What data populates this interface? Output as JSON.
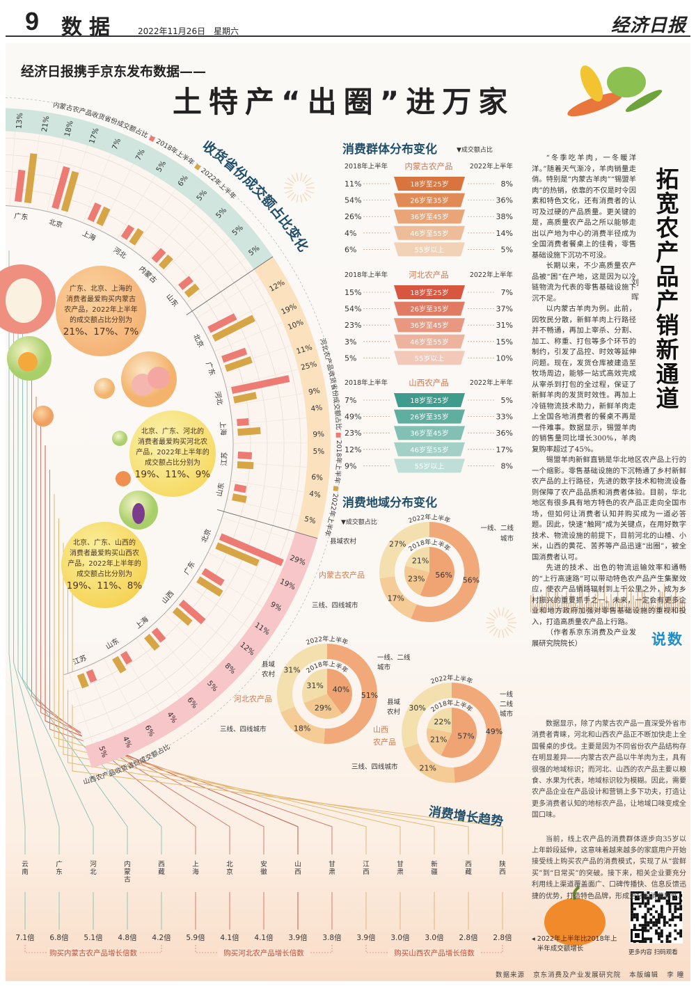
{
  "header": {
    "page_no": "9",
    "section": "数据",
    "date": "2022年11月26日",
    "weekday": "星期六",
    "masthead": "经济日报"
  },
  "headline": {
    "kicker": "经济日报携手京东发布数据——",
    "title": "土特产“出圈”进万家"
  },
  "colors": {
    "accent_title": "#1f4f6b",
    "series_2018": "#ec7b73",
    "series_2022": "#d6a545",
    "band_inner_mongolia": "#cfe5dd",
    "band_hebei": "#fbe1bd",
    "band_shanxi": "#f6c6c8",
    "shuoshu": "#1d8ec7"
  },
  "callouts": [
    {
      "lines": [
        "广东、北京、上海的",
        "消费者最爱购买内蒙古",
        "农产品，2022年上半年",
        "的成交额占比分别为"
      ],
      "values": "21%、17%、7%"
    },
    {
      "lines": [
        "北京、广东、河北的",
        "消费者最爱购买河北农",
        "产品，2022年上半年的",
        "成交额占比分别为"
      ],
      "values": "19%、11%、9%"
    },
    {
      "lines": [
        "北京、广东、山西的",
        "消费者最爱购买山西农",
        "产品，2022年上半年的",
        "成交额占比分别为"
      ],
      "values": "19%、11%、8%"
    }
  ],
  "chart_data": [
    {
      "type": "bar",
      "layout": "radial",
      "title": "收货省份成交额占比变化",
      "unit": "%",
      "legend": [
        "2018年上半年",
        "2022年上半年"
      ],
      "groups": [
        {
          "name": "内蒙古农产品收货省份成交额占比",
          "categories": [
            "广东",
            "北京",
            "上海",
            "河北",
            "内蒙古",
            "山东"
          ],
          "series": [
            {
              "name": "2018年上半年",
              "values": [
                13,
                18,
                7,
                5,
                5,
                5
              ]
            },
            {
              "name": "2022年上半年",
              "values": [
                21,
                17,
                7,
                6,
                5,
                5
              ]
            }
          ]
        },
        {
          "name": "河北农产品收货省份成交额占比",
          "categories": [
            "北京",
            "广东",
            "河北",
            "上海",
            "江苏",
            "山东"
          ],
          "series": [
            {
              "name": "2018年上半年",
              "values": [
                12,
                10,
                25,
                4,
                5,
                4
              ]
            },
            {
              "name": "2022年上半年",
              "values": [
                19,
                11,
                9,
                9,
                6,
                5
              ]
            }
          ]
        },
        {
          "name": "山西农产品收货省份成交额占比",
          "categories": [
            "北京",
            "广东",
            "山西",
            "上海",
            "山东",
            "江苏"
          ],
          "series": [
            {
              "name": "2018年上半年",
              "values": [
                29,
                9,
                12,
                5,
                4,
                4
              ]
            },
            {
              "name": "2022年上半年",
              "values": [
                19,
                11,
                8,
                6,
                6,
                5
              ]
            }
          ]
        }
      ]
    },
    {
      "type": "table",
      "layout": "funnel",
      "title": "消费群体分布变化",
      "note": "▼成交额占比",
      "left_header": "2018年上半年",
      "right_header": "2022年上半年",
      "categories": [
        "18岁至25岁",
        "26岁至35岁",
        "36岁至45岁",
        "46岁至55岁",
        "55岁以上"
      ],
      "groups": [
        {
          "name": "内蒙古农产品",
          "y2018": [
            "11%",
            "54%",
            "26%",
            "4%",
            "6%"
          ],
          "y2022": [
            "8%",
            "36%",
            "38%",
            "14%",
            "5%"
          ],
          "colors": [
            "#d9743f",
            "#e08a56",
            "#e9a478",
            "#eebc98",
            "#f2d2b6"
          ]
        },
        {
          "name": "河北农产品",
          "y2018": [
            "15%",
            "54%",
            "23%",
            "3%",
            "5%"
          ],
          "y2022": [
            "7%",
            "37%",
            "31%",
            "15%",
            "10%"
          ],
          "colors": [
            "#d8553f",
            "#e07a62",
            "#e89880",
            "#eeb39e",
            "#f2c8b8"
          ]
        },
        {
          "name": "山西农产品",
          "y2018": [
            "7%",
            "49%",
            "23%",
            "12%",
            "9%"
          ],
          "y2022": [
            "5%",
            "33%",
            "36%",
            "17%",
            "8%"
          ],
          "colors": [
            "#3f9c8c",
            "#5fae9f",
            "#82c0b4",
            "#a2d0c6",
            "#bfded7"
          ]
        }
      ]
    },
    {
      "type": "pie",
      "layout": "nested-donut",
      "title": "消费地域分布变化",
      "note": "▼成交额占比",
      "outer_label": "2022年上半年",
      "inner_label": "2018年上半年",
      "segment_colors": [
        "#f1a473",
        "#f4c891",
        "#f2deaa"
      ],
      "groups": [
        {
          "name": "内蒙古农产品",
          "categories": [
            "一线、二线城市",
            "三线、四线城市",
            "县域农村"
          ],
          "y2022": [
            56,
            17,
            27
          ],
          "y2018": [
            56,
            23,
            21
          ]
        },
        {
          "name": "河北农产品",
          "categories": [
            "一线、二线城市",
            "三线、四线城市",
            "县域农村"
          ],
          "y2022": [
            51,
            18,
            31
          ],
          "y2018": [
            40,
            29,
            31
          ]
        },
        {
          "name": "山西农产品",
          "categories": [
            "一线二线城市",
            "三线、四线城市",
            "县域农村"
          ],
          "y2022": [
            49,
            21,
            30
          ],
          "y2018": [
            57,
            21,
            22
          ]
        }
      ]
    },
    {
      "type": "bar",
      "layout": "label-list",
      "title": "消费增长趋势",
      "note": "2022年上半年比2018年上半年成交额增长",
      "categories": [
        "云南",
        "广东",
        "河北",
        "内蒙古",
        "西藏",
        "上海",
        "北京",
        "安徽",
        "山西",
        "甘肃",
        "江西",
        "甘肃",
        "新疆",
        "西藏",
        "陕西"
      ],
      "values": [
        7.1,
        6.8,
        5.1,
        4.8,
        4.2,
        5.9,
        4.1,
        4.1,
        3.9,
        3.8,
        3.9,
        3.0,
        3.0,
        2.8,
        2.8
      ],
      "value_suffix": "倍",
      "group_labels": [
        "购买内蒙古农产品增长倍数",
        "购买河北农产品增长倍数",
        "购买山西农产品增长倍数"
      ]
    }
  ],
  "article": {
    "title": "拓宽农产品产销新通道",
    "author": "刘晖",
    "paragraphs": [
      "“冬季吃羊肉，一冬暖洋洋。”随着天气渐冷，羊肉销量走俏。特别是“内蒙古羊肉”“锡盟羊肉”的热销，依靠的不仅是时令因素和特色文化，还有消费者的认可及过硬的产品质量。更关键的是，高质量农产品之所以能够走出以产地为中心的消费半径成为全国消费者餐桌上的佳肴，零售基础设施下沉功不可没。",
      "长期以来，不少高质量农产品被“困”在产地，这是因为以冷链物流为代表的零售基础设施下沉不足。",
      "以内蒙古羊肉为例。此前，因牧民分散，新鲜羊肉上行路径并不畅通，再加上宰杀、分割、加工、称重、打包等多个环节的制约，引发了品控、时效等延伸问题。现在，发货仓库被建造至牧场周边，能够一站式高效完成从宰杀到打包的全过程，保证了新鲜羊肉的发货时效性。再加上冷链物流技术助力，新鲜羊肉走上全国各地消费者的餐桌不再是一件难事。数据显示，锡盟羊肉的销售量同比增长300%，羊肉复购率超过了45%。",
      "锡盟羊肉新鲜直销是华北地区农产品上行的一个缩影。零售基础设施的下沉畅通了乡村新鲜农产品的上行路径，先进的数字技术和物流设备则保障了农产品品质和消费者体验。目前，华北地区有很多具有地方特色的农产品正走向全国市场，但如何让消费者认知并购买成为一道必答题。因此，快速“触网”成为关键点，在用好数字技术、物流设施的前提下，目前河北的山楂、小米，山西的黄花、苦荞等产品迅速“出圈”，被全国消费者认可。",
      "先进的技术、出色的物流运输效率和通畅的“上行高速路”可以带动特色农产品产生集聚效应，使农产品销路辐射到上千公里之外，成为乡村振兴的重要抓手之一。未来，一定会有更多企业和地方政府加强对零售基础设施的重视和投入，打造高质量农产品上行路。"
    ],
    "footnote": "（作者系京东消费及产业发展研究院院长）"
  },
  "shuoshu": {
    "label": "说数",
    "paragraphs": [
      "数据显示，除了内蒙古农产品一直深受外省市消费者青睐，河北和山西农产品正不断加快走上全国餐桌的步伐。主要是因为不同省份农产品结构存在明显差异——内蒙古农产品以牛羊肉为主，具有很强的地域标识；而河北、山西的农产品主要以粮食、水果为代表，地域标识较为模糊。因此，需要农产品企业在产品设计和营销上多下功夫，打造让更多消费者认知的地标农产品，让地域口味变成全国口味。",
      "当前，线上农产品的消费群体逐步向35岁以上年龄段延伸，这意味着越来越多的家庭用户开始接受线上购买农产品的消费模式，实现了从“尝鲜买”到“日常买”的突破。接下来，相关企业要充分利用线上渠道覆盖面广、口碑传播快、信息反馈迅捷的优势，打造特色品牌，形成更好的消费黏性。"
    ]
  },
  "footer": {
    "source_label": "数据来源",
    "source": "京东消费及产业发展研究院",
    "editor_label": "本版编辑",
    "editor": "李 瞳",
    "qr_caption": "更多内容 扫码观看"
  }
}
